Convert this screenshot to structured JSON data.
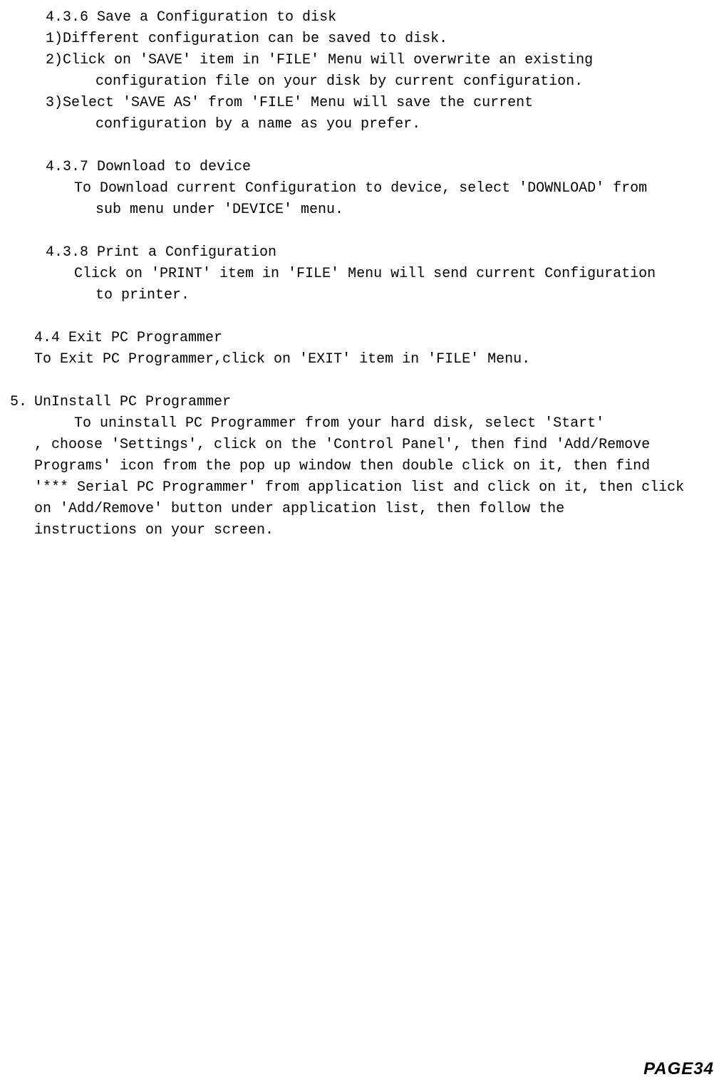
{
  "section_436_title": "4.3.6 Save a Configuration to disk",
  "section_436_item1": "1)Different configuration can be saved to disk.",
  "section_436_item2a": "2)Click on 'SAVE' item in 'FILE' Menu will overwrite an existing",
  "section_436_item2b": "configuration file on your disk by current configuration.",
  "section_436_item3a": "3)Select 'SAVE AS' from 'FILE' Menu will save the current",
  "section_436_item3b": "configuration by  a name as you prefer.",
  "section_437_title": "4.3.7 Download to device",
  "section_437_l1": "To Download current Configuration to device, select 'DOWNLOAD' from",
  "section_437_l2": "sub menu under 'DEVICE' menu.",
  "section_438_title": "4.3.8 Print a Configuration",
  "section_438_l1": "Click on 'PRINT' item in 'FILE' Menu will send current Configuration",
  "section_438_l2": "to printer.",
  "section_44_title": "4.4 Exit PC Programmer",
  "section_44_body": "To Exit PC Programmer,click on 'EXIT' item in 'FILE' Menu.",
  "chapter5_num": "5.",
  "chapter5_title": "UnInstall PC Programmer",
  "chapter5_l1": "To uninstall PC Programmer from your hard disk,  select 'Start'",
  "chapter5_l2": ", choose 'Settings', click on the 'Control Panel', then find 'Add/Remove",
  "chapter5_l3": "Programs' icon from the pop up window then double click on it, then find",
  "chapter5_l4": "'*** Serial PC Programmer' from application list and click on it, then click",
  "chapter5_l5": "on 'Add/Remove' button under application list, then follow the",
  "chapter5_l6": "instructions on your screen.",
  "page_label": "PAGE34"
}
